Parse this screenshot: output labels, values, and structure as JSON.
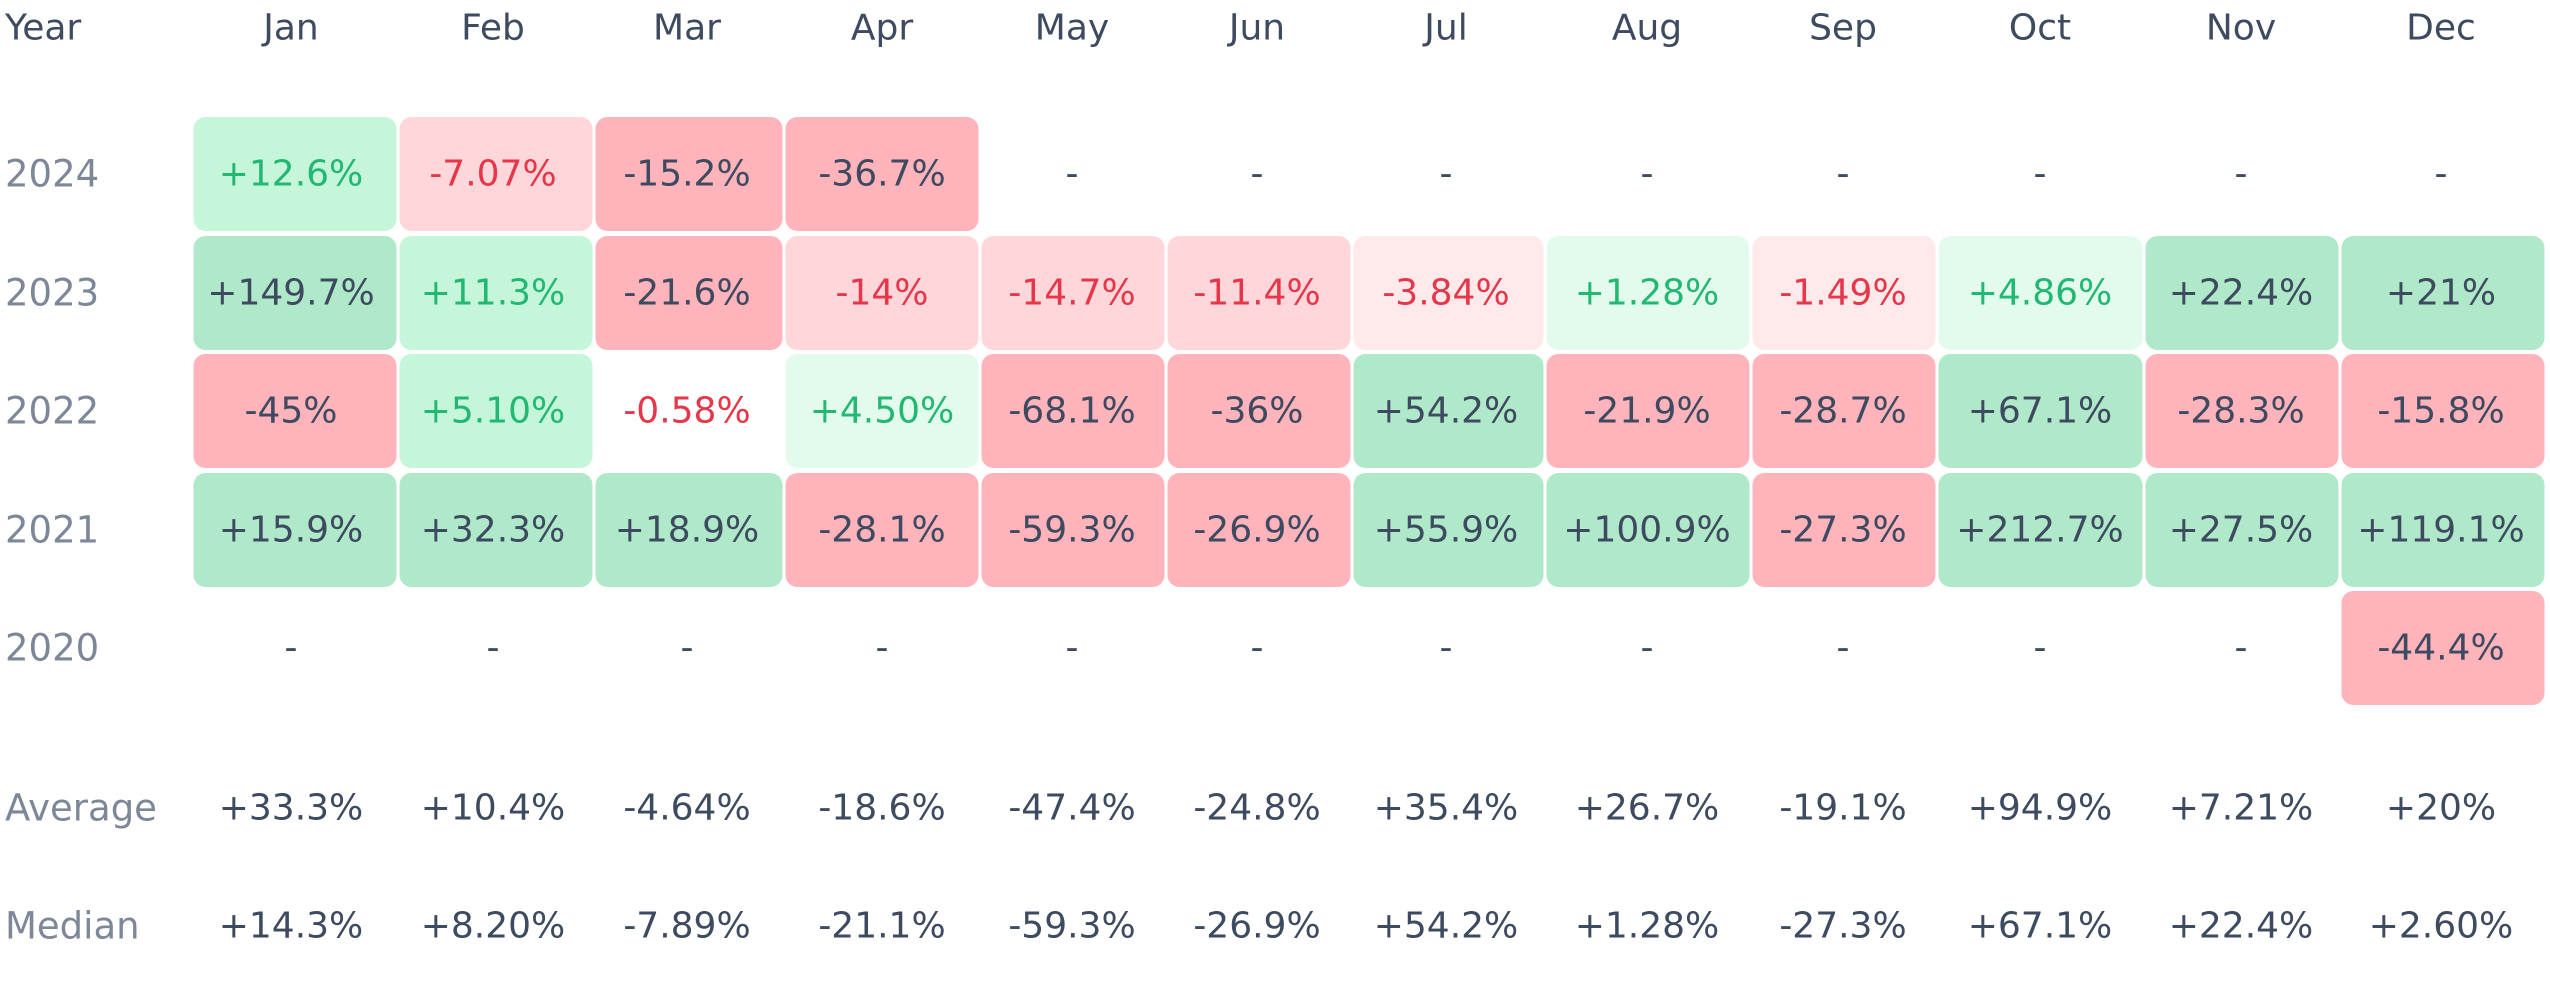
{
  "chart_data": {
    "type": "heatmap",
    "title": "",
    "corner_label": "Year",
    "months": [
      "Jan",
      "Feb",
      "Mar",
      "Apr",
      "May",
      "Jun",
      "Jul",
      "Aug",
      "Sep",
      "Oct",
      "Nov",
      "Dec"
    ],
    "rows": [
      {
        "year": "2024",
        "values": [
          "+12.6%",
          "-7.07%",
          "-15.2%",
          "-36.7%",
          "-",
          "-",
          "-",
          "-",
          "-",
          "-",
          "-",
          "-"
        ]
      },
      {
        "year": "2023",
        "values": [
          "+149.7%",
          "+11.3%",
          "-21.6%",
          "-14%",
          "-14.7%",
          "-11.4%",
          "-3.84%",
          "+1.28%",
          "-1.49%",
          "+4.86%",
          "+22.4%",
          "+21%"
        ]
      },
      {
        "year": "2022",
        "values": [
          "-45%",
          "+5.10%",
          "-0.58%",
          "+4.50%",
          "-68.1%",
          "-36%",
          "+54.2%",
          "-21.9%",
          "-28.7%",
          "+67.1%",
          "-28.3%",
          "-15.8%"
        ]
      },
      {
        "year": "2021",
        "values": [
          "+15.9%",
          "+32.3%",
          "+18.9%",
          "-28.1%",
          "-59.3%",
          "-26.9%",
          "+55.9%",
          "+100.9%",
          "-27.3%",
          "+212.7%",
          "+27.5%",
          "+119.1%"
        ]
      },
      {
        "year": "2020",
        "values": [
          "-",
          "-",
          "-",
          "-",
          "-",
          "-",
          "-",
          "-",
          "-",
          "-",
          "-",
          "-44.4%"
        ]
      }
    ],
    "summary": [
      {
        "label": "Average",
        "values": [
          "+33.3%",
          "+10.4%",
          "-4.64%",
          "-18.6%",
          "-47.4%",
          "-24.8%",
          "+35.4%",
          "+26.7%",
          "-19.1%",
          "+94.9%",
          "+7.21%",
          "+20%"
        ]
      },
      {
        "label": "Median",
        "values": [
          "+14.3%",
          "+8.20%",
          "-7.89%",
          "-21.1%",
          "-59.3%",
          "-26.9%",
          "+54.2%",
          "+1.28%",
          "-27.3%",
          "+67.1%",
          "+22.4%",
          "+2.60%"
        ]
      }
    ],
    "colors": {
      "header_text": "#3d4a5f",
      "year_text": "#7d8798",
      "stat_text": "#3d4a5f",
      "pos_strong_bg": "#afe9c9",
      "pos_mid_bg": "#c6f6da",
      "pos_weak_bg": "#e3fbec",
      "neg_strong_bg": "#ffb3bb",
      "neg_mid_bg": "#ffd6da",
      "neg_weak_bg": "#ffe9eb",
      "strong_text": "#3d4a5f",
      "pos_text": "#22b874",
      "neg_text": "#e5364a",
      "empty_text": "#3d4a5f"
    }
  }
}
